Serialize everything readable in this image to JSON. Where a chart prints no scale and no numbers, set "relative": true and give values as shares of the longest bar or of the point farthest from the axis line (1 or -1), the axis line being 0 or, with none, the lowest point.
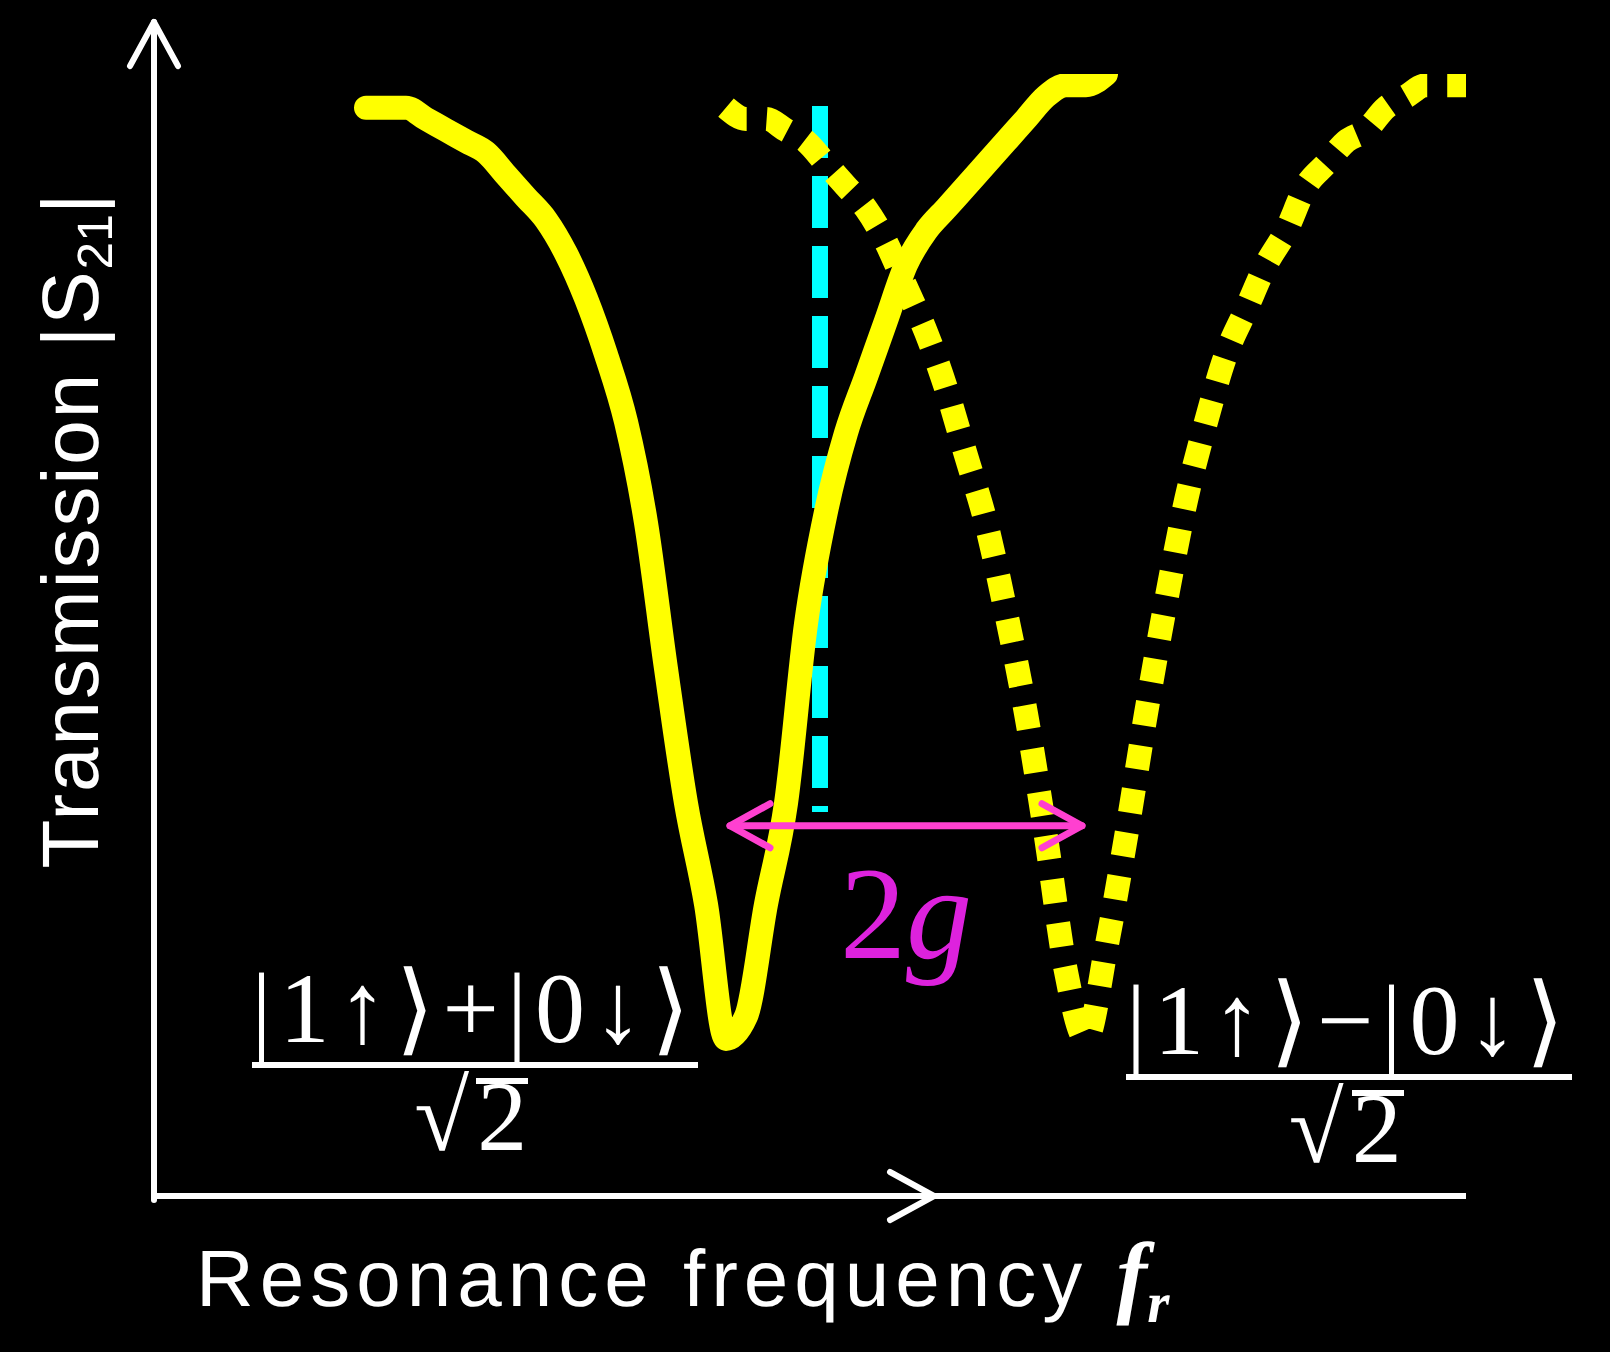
{
  "chart_data": {
    "type": "line",
    "relative": true,
    "xlabel": "Resonance frequency f$_{r}$",
    "ylabel": "Transmission |S$_{21}$|",
    "categories": [
      null,
      null,
      null,
      null,
      null,
      null,
      null,
      null,
      null,
      null,
      null,
      null,
      null,
      null,
      null,
      null,
      null,
      null,
      null,
      null,
      null,
      null,
      null,
      null,
      null,
      null,
      null,
      null,
      null,
      null,
      null,
      null,
      null,
      null,
      null,
      null,
      null,
      null,
      null,
      null,
      null,
      null,
      null,
      null,
      null,
      null,
      null,
      null,
      null,
      null,
      null,
      null,
      null,
      null,
      null,
      null
    ],
    "series": [
      {
        "name": "|1↑⟩+|0↓⟩\n√2",
        "color": "#ffff00",
        "line_style": "solid",
        "values": [
          0.97,
          0.97,
          0.97,
          0.96,
          0.95,
          0.94,
          0.93,
          0.91,
          0.89,
          0.87,
          0.84,
          0.8,
          0.75,
          0.69,
          0.6,
          0.47,
          0.35,
          0.26,
          0.14,
          0.16,
          0.26,
          0.35,
          0.51,
          0.61,
          0.68,
          0.73,
          0.78,
          0.83,
          0.86,
          0.88,
          0.9,
          0.92,
          0.94,
          0.96,
          0.98,
          0.99,
          0.99,
          1,
          null,
          null,
          null,
          null,
          null,
          null,
          null,
          null,
          null,
          null,
          null,
          null,
          null,
          null,
          null,
          null,
          null,
          null
        ]
      },
      {
        "name": "|1↑⟩−|0↓⟩\n√2",
        "color": "#ffff00",
        "line_style": "dotted",
        "values": [
          null,
          null,
          null,
          null,
          null,
          null,
          null,
          null,
          null,
          null,
          null,
          null,
          null,
          null,
          null,
          null,
          null,
          null,
          0.97,
          0.96,
          0.96,
          0.95,
          0.94,
          0.92,
          0.9,
          0.88,
          0.85,
          0.81,
          0.77,
          0.72,
          0.66,
          0.6,
          0.52,
          0.43,
          0.32,
          0.2,
          0.14,
          0.22,
          0.32,
          0.43,
          0.53,
          0.62,
          0.69,
          0.75,
          0.79,
          0.83,
          0.86,
          0.9,
          0.92,
          0.94,
          0.95,
          0.97,
          0.98,
          0.99,
          0.99,
          0.99
        ]
      }
    ],
    "annotations": [
      "2g"
    ]
  }
}
